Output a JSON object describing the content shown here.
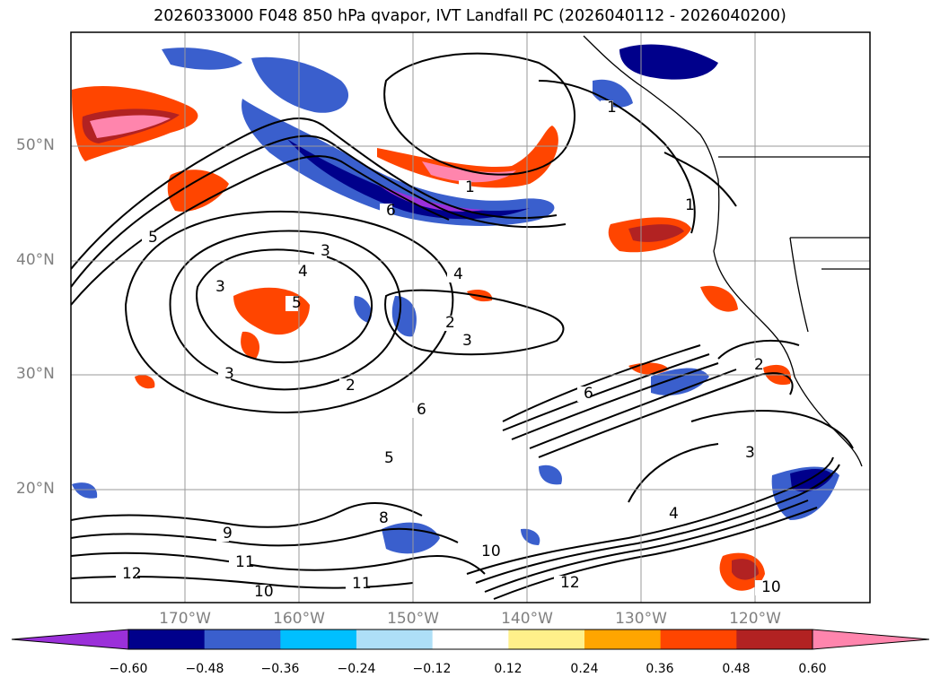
{
  "title": "2026033000 F048 850 hPa qvapor, IVT Landfall PC (2026040112 - 2026040200)",
  "map": {
    "lat_labels": [
      "50°N",
      "40°N",
      "30°N",
      "20°N"
    ],
    "lon_labels": [
      "170°W",
      "160°W",
      "150°W",
      "140°W",
      "130°W",
      "120°W"
    ],
    "contour_labels": [
      "1",
      "1",
      "1",
      "2",
      "2",
      "2",
      "3",
      "3",
      "3",
      "3",
      "3",
      "4",
      "4",
      "4",
      "5",
      "5",
      "5",
      "6",
      "6",
      "6",
      "8",
      "9",
      "10",
      "10",
      "10",
      "11",
      "11",
      "12",
      "12"
    ],
    "grid": true,
    "contour_color": "#000000"
  },
  "colorbar": {
    "ticks": [
      "−0.60",
      "−0.48",
      "−0.36",
      "−0.24",
      "−0.12",
      "0.12",
      "0.24",
      "0.36",
      "0.48",
      "0.60"
    ],
    "colors": [
      "#9b30d9",
      "#00008b",
      "#3a5fcd",
      "#00bfff",
      "#aedff7",
      "#ffffff",
      "#fff08a",
      "#ffa500",
      "#ff4500",
      "#b22222",
      "#ff85ad"
    ],
    "extend": "both"
  }
}
